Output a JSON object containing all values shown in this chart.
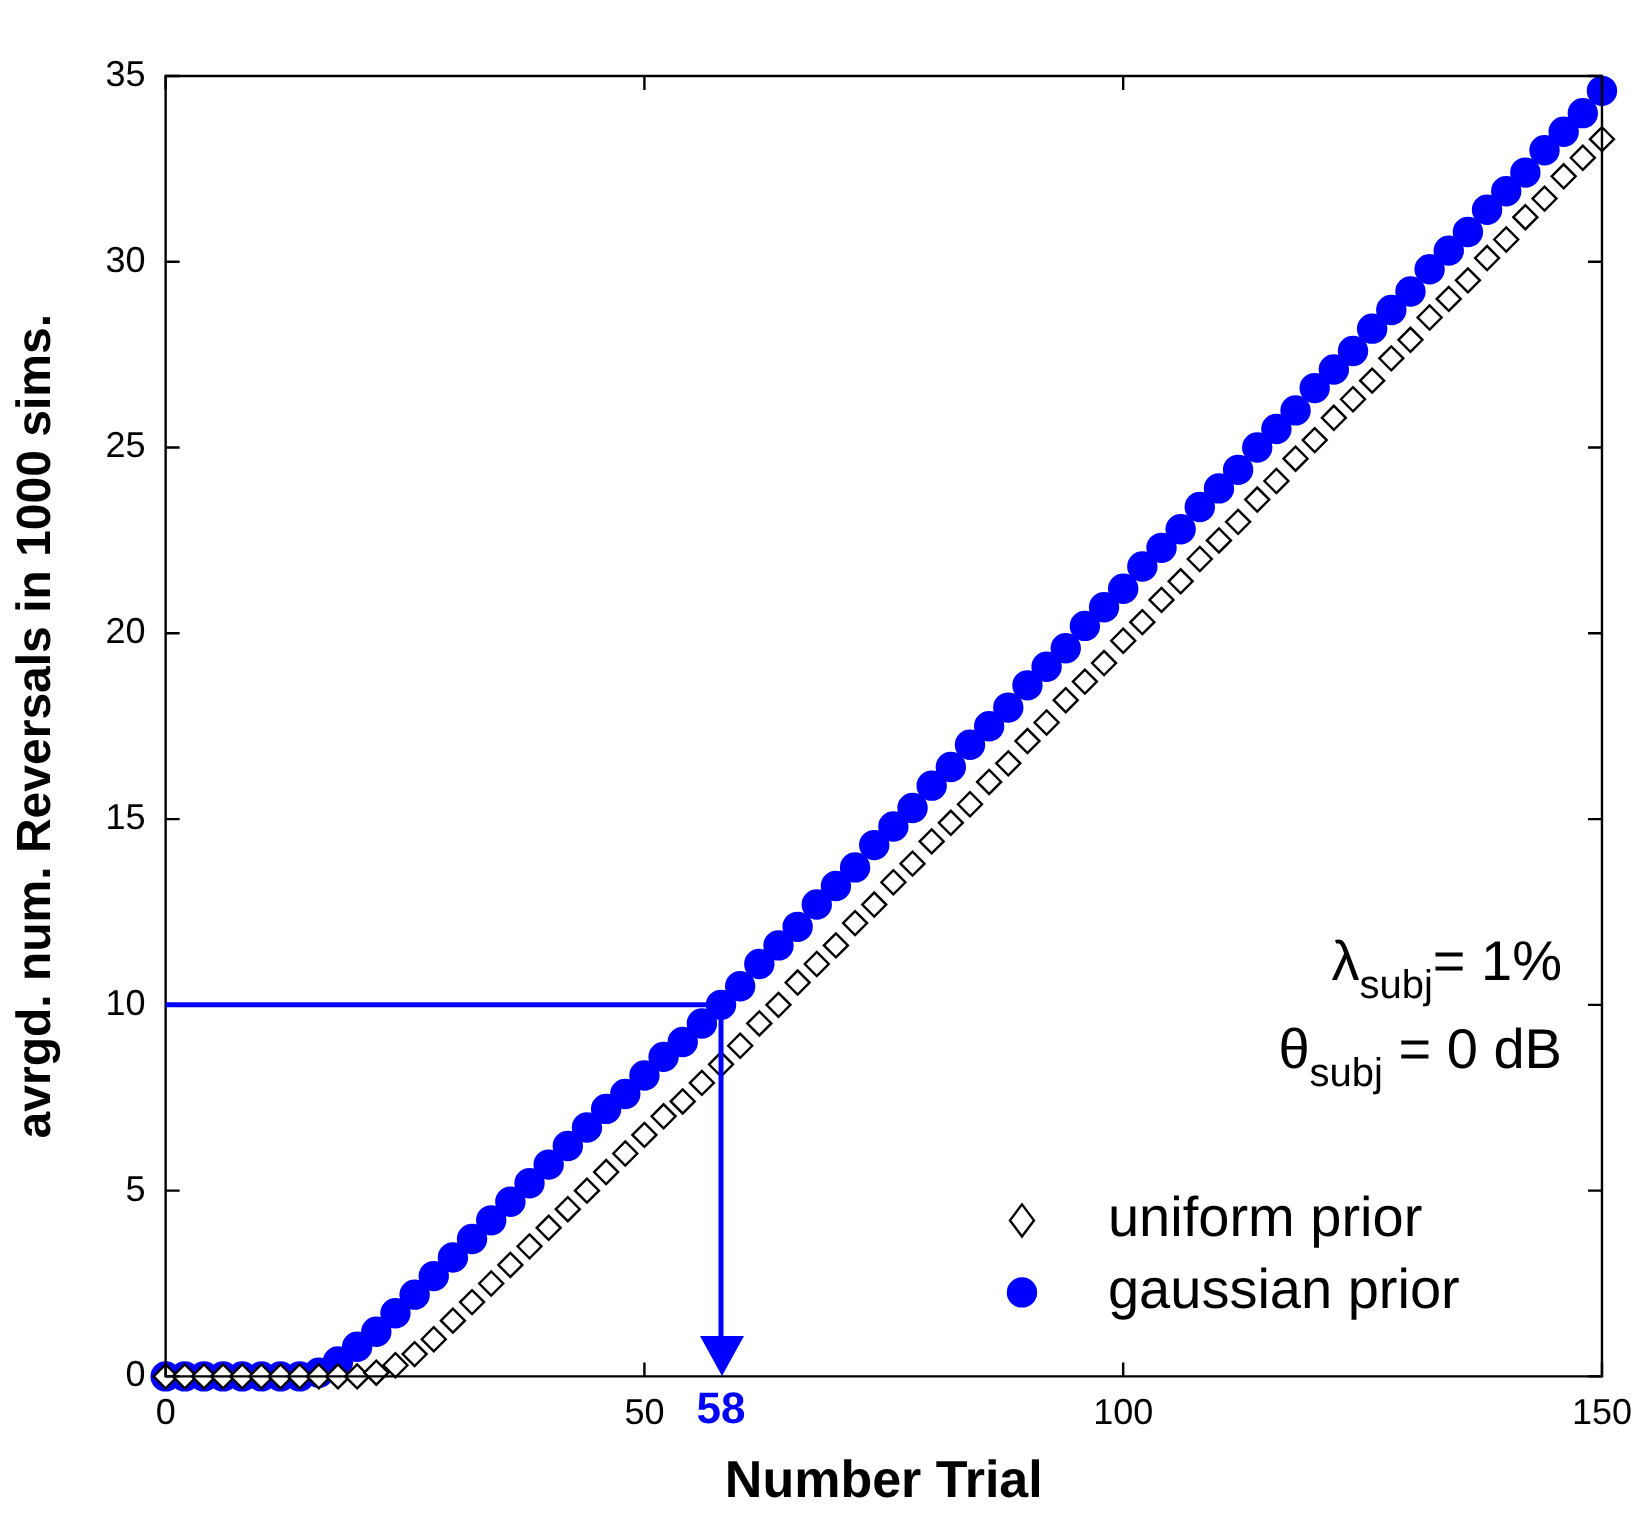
{
  "chart_data": {
    "type": "scatter",
    "xlabel": "Number Trial",
    "ylabel": "avrgd. num. Reversals in 1000 sims.",
    "x": [
      0,
      2,
      4,
      6,
      8,
      10,
      12,
      14,
      16,
      18,
      20,
      22,
      24,
      26,
      28,
      30,
      32,
      34,
      36,
      38,
      40,
      42,
      44,
      46,
      48,
      50,
      52,
      54,
      56,
      58,
      60,
      62,
      64,
      66,
      68,
      70,
      72,
      74,
      76,
      78,
      80,
      82,
      84,
      86,
      88,
      90,
      92,
      94,
      96,
      98,
      100,
      102,
      104,
      106,
      108,
      110,
      112,
      114,
      116,
      118,
      120,
      122,
      124,
      126,
      128,
      130,
      132,
      134,
      136,
      138,
      140,
      142,
      144,
      146,
      148,
      150
    ],
    "series": [
      {
        "name": "uniform prior",
        "color": "#000000",
        "marker": "diamond",
        "values": [
          0,
          0,
          0,
          0,
          0,
          0,
          0,
          0,
          0,
          0,
          0,
          0.1,
          0.3,
          0.6,
          1.0,
          1.5,
          2.0,
          2.5,
          3.0,
          3.5,
          4.0,
          4.5,
          5.0,
          5.5,
          6.0,
          6.5,
          7.0,
          7.4,
          7.9,
          8.4,
          8.9,
          9.5,
          10.0,
          10.6,
          11.1,
          11.6,
          12.2,
          12.7,
          13.3,
          13.8,
          14.4,
          14.9,
          15.4,
          16.0,
          16.5,
          17.1,
          17.6,
          18.2,
          18.7,
          19.2,
          19.8,
          20.3,
          20.9,
          21.4,
          22.0,
          22.5,
          23.0,
          23.6,
          24.1,
          24.7,
          25.2,
          25.8,
          26.3,
          26.8,
          27.4,
          27.9,
          28.5,
          29.0,
          29.5,
          30.1,
          30.6,
          31.2,
          31.7,
          32.3,
          32.8,
          33.3
        ]
      },
      {
        "name": "gaussian prior",
        "color": "#0000ff",
        "marker": "circle",
        "values": [
          0,
          0,
          0,
          0,
          0,
          0,
          0,
          0,
          0.1,
          0.4,
          0.8,
          1.2,
          1.7,
          2.2,
          2.7,
          3.2,
          3.7,
          4.2,
          4.7,
          5.2,
          5.7,
          6.2,
          6.7,
          7.2,
          7.6,
          8.1,
          8.6,
          9.0,
          9.5,
          10.0,
          10.5,
          11.1,
          11.6,
          12.1,
          12.7,
          13.2,
          13.7,
          14.3,
          14.8,
          15.3,
          15.9,
          16.4,
          17.0,
          17.5,
          18.0,
          18.6,
          19.1,
          19.6,
          20.2,
          20.7,
          21.2,
          21.8,
          22.3,
          22.8,
          23.4,
          23.9,
          24.4,
          25.0,
          25.5,
          26.0,
          26.6,
          27.1,
          27.6,
          28.2,
          28.7,
          29.2,
          29.8,
          30.3,
          30.8,
          31.4,
          31.9,
          32.4,
          33.0,
          33.5,
          34.0,
          34.6
        ]
      }
    ],
    "xlim": [
      0,
      150
    ],
    "xticks": [
      0,
      50,
      100,
      150
    ],
    "ylim": [
      0,
      35
    ],
    "yticks": [
      0,
      5,
      10,
      15,
      20,
      25,
      30,
      35
    ],
    "grid": false,
    "legend": "bottom right",
    "ref_lines": [
      {
        "axis": "y",
        "value": 10,
        "color": "#0000ff"
      },
      {
        "axis": "x",
        "value": 58,
        "label": "58",
        "color": "#0000ff"
      }
    ],
    "annotations": [
      "λ$_{subj}$= 1%",
      "θ$_{subj}$ = 0 dB"
    ]
  }
}
